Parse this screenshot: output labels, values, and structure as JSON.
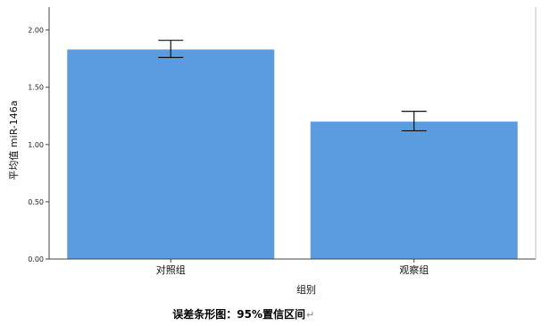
{
  "chart_data": {
    "type": "bar",
    "categories": [
      "对照组",
      "观察组"
    ],
    "values": [
      1.83,
      1.2
    ],
    "error_bars": [
      {
        "low": 1.76,
        "high": 1.91
      },
      {
        "low": 1.12,
        "high": 1.29
      }
    ],
    "ylabel": "平均值 miR-146a",
    "xlabel": "组别",
    "ylim": [
      0,
      2.2
    ],
    "yticks": [
      "0.00",
      "0.50",
      "1.00",
      "1.50",
      "2.00"
    ],
    "ytick_values": [
      0,
      0.5,
      1.0,
      1.5,
      2.0
    ],
    "bar_color": "#5B9BE0",
    "grid": false,
    "caption": "误差条形图：95%置信区间",
    "caption_mark": "↵"
  }
}
